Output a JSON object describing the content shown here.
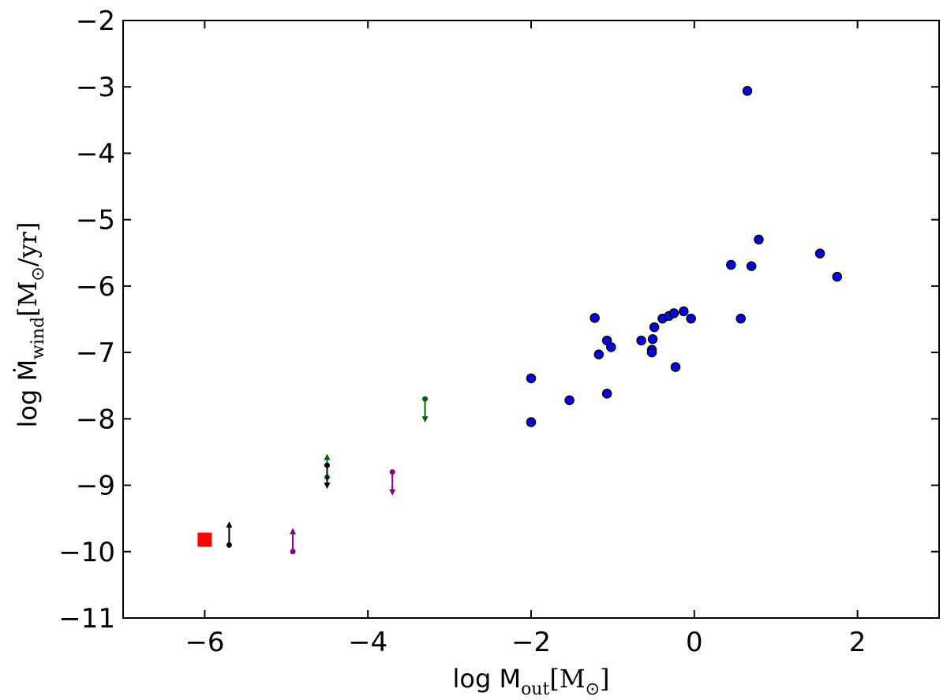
{
  "chart_data": {
    "type": "scatter",
    "title": "",
    "xlabel": {
      "prefix": "log M",
      "sub": "out",
      "bracket": "[M",
      "sun_sub": "⊙",
      "close": "]"
    },
    "ylabel": {
      "prefix": "log Ṁ",
      "sub": "wind",
      "bracket": "[M",
      "sun_sub": "⊙",
      "unit": "/yr]"
    },
    "xlim": [
      -7,
      3
    ],
    "ylim": [
      -11,
      -2
    ],
    "xticks": [
      {
        "value": -6,
        "label": "−6"
      },
      {
        "value": -4,
        "label": "−4"
      },
      {
        "value": -2,
        "label": "−2"
      },
      {
        "value": 0,
        "label": "0"
      },
      {
        "value": 2,
        "label": "2"
      }
    ],
    "yticks": [
      {
        "value": -11,
        "label": "−11"
      },
      {
        "value": -10,
        "label": "−10"
      },
      {
        "value": -9,
        "label": "−9"
      },
      {
        "value": -8,
        "label": "−8"
      },
      {
        "value": -7,
        "label": "−7"
      },
      {
        "value": -6,
        "label": "−6"
      },
      {
        "value": -5,
        "label": "−5"
      },
      {
        "value": -4,
        "label": "−4"
      },
      {
        "value": -3,
        "label": "−3"
      },
      {
        "value": -2,
        "label": "−2"
      }
    ],
    "grid": false,
    "colors": {
      "detections": "#0000ff",
      "highlight": "#ff0000",
      "black": "#000000",
      "green": "#006400",
      "purple": "#800080"
    },
    "points": [
      {
        "x": -2.0,
        "y": -7.39
      },
      {
        "x": -2.0,
        "y": -8.05
      },
      {
        "x": -1.53,
        "y": -7.72
      },
      {
        "x": -1.22,
        "y": -6.48
      },
      {
        "x": -1.17,
        "y": -7.03
      },
      {
        "x": -1.07,
        "y": -6.82
      },
      {
        "x": -1.07,
        "y": -7.62
      },
      {
        "x": -1.02,
        "y": -6.92
      },
      {
        "x": -0.65,
        "y": -6.82
      },
      {
        "x": -0.52,
        "y": -6.96
      },
      {
        "x": -0.52,
        "y": -7.0
      },
      {
        "x": -0.51,
        "y": -6.8
      },
      {
        "x": -0.49,
        "y": -6.62
      },
      {
        "x": -0.39,
        "y": -6.49
      },
      {
        "x": -0.31,
        "y": -6.45
      },
      {
        "x": -0.25,
        "y": -6.41
      },
      {
        "x": -0.23,
        "y": -7.22
      },
      {
        "x": -0.13,
        "y": -6.38
      },
      {
        "x": -0.04,
        "y": -6.49
      },
      {
        "x": 0.45,
        "y": -5.68
      },
      {
        "x": 0.57,
        "y": -6.49
      },
      {
        "x": 0.65,
        "y": -3.06
      },
      {
        "x": 0.7,
        "y": -5.7
      },
      {
        "x": 0.79,
        "y": -5.3
      },
      {
        "x": 1.54,
        "y": -5.51
      },
      {
        "x": 1.75,
        "y": -5.86
      }
    ],
    "square": {
      "x": -6.0,
      "y": -9.82
    },
    "limits": [
      {
        "x": -5.7,
        "y": -9.9,
        "dir": "up",
        "color": "black"
      },
      {
        "x": -4.92,
        "y": -10.0,
        "dir": "up",
        "color": "purple"
      },
      {
        "x": -4.5,
        "y": -8.88,
        "dir": "up",
        "color": "green"
      },
      {
        "x": -4.5,
        "y": -8.7,
        "dir": "down",
        "color": "black"
      },
      {
        "x": -3.7,
        "y": -8.8,
        "dir": "down",
        "color": "purple"
      },
      {
        "x": -3.3,
        "y": -7.7,
        "dir": "down",
        "color": "green"
      }
    ]
  }
}
